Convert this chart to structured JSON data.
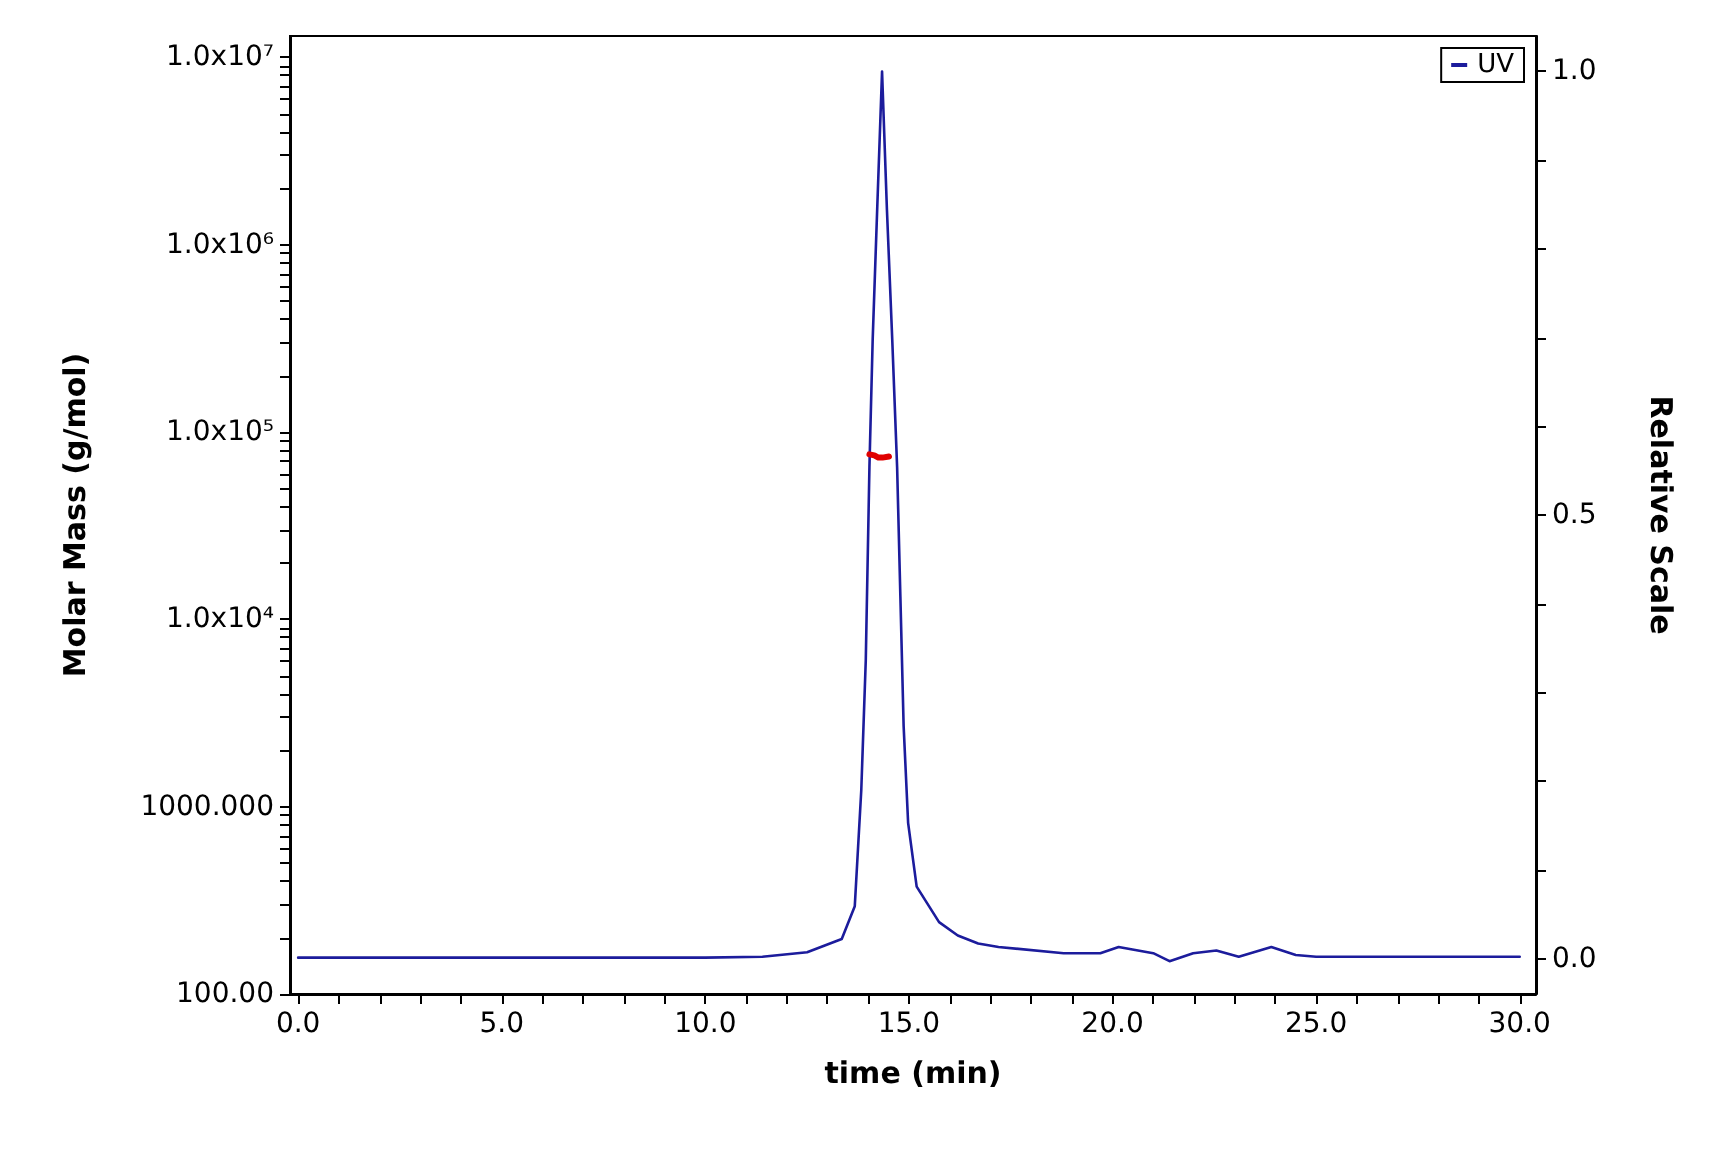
{
  "chart_data": {
    "type": "line",
    "xlabel": "time (min)",
    "ylabel": "Molar Mass (g/mol)",
    "y2label": "Relative Scale",
    "xlim": [
      -0.2,
      30.4
    ],
    "xticks": [
      {
        "value": 0,
        "label": "0.0"
      },
      {
        "value": 1,
        "label": null
      },
      {
        "value": 2,
        "label": null
      },
      {
        "value": 3,
        "label": null
      },
      {
        "value": 4,
        "label": null
      },
      {
        "value": 5,
        "label": "5.0"
      },
      {
        "value": 6,
        "label": null
      },
      {
        "value": 7,
        "label": null
      },
      {
        "value": 8,
        "label": null
      },
      {
        "value": 9,
        "label": null
      },
      {
        "value": 10,
        "label": "10.0"
      },
      {
        "value": 11,
        "label": null
      },
      {
        "value": 12,
        "label": null
      },
      {
        "value": 13,
        "label": null
      },
      {
        "value": 14,
        "label": null
      },
      {
        "value": 15,
        "label": "15.0"
      },
      {
        "value": 16,
        "label": null
      },
      {
        "value": 17,
        "label": null
      },
      {
        "value": 18,
        "label": null
      },
      {
        "value": 19,
        "label": null
      },
      {
        "value": 20,
        "label": "20.0"
      },
      {
        "value": 21,
        "label": null
      },
      {
        "value": 22,
        "label": null
      },
      {
        "value": 23,
        "label": null
      },
      {
        "value": 24,
        "label": null
      },
      {
        "value": 25,
        "label": "25.0"
      },
      {
        "value": 26,
        "label": null
      },
      {
        "value": 27,
        "label": null
      },
      {
        "value": 28,
        "label": null
      },
      {
        "value": 29,
        "label": null
      },
      {
        "value": 30,
        "label": "30.0"
      }
    ],
    "log": "y",
    "ylim": [
      100,
      13000000
    ],
    "yticks": [
      {
        "value": 100,
        "label": "100.00"
      },
      {
        "value": 200,
        "label": null
      },
      {
        "value": 300,
        "label": null
      },
      {
        "value": 400,
        "label": null
      },
      {
        "value": 500,
        "label": null
      },
      {
        "value": 600,
        "label": null
      },
      {
        "value": 700,
        "label": null
      },
      {
        "value": 800,
        "label": null
      },
      {
        "value": 900,
        "label": null
      },
      {
        "value": 1000,
        "label": "1000.000"
      },
      {
        "value": 2000,
        "label": null
      },
      {
        "value": 3000,
        "label": null
      },
      {
        "value": 4000,
        "label": null
      },
      {
        "value": 5000,
        "label": null
      },
      {
        "value": 6000,
        "label": null
      },
      {
        "value": 7000,
        "label": null
      },
      {
        "value": 8000,
        "label": null
      },
      {
        "value": 9000,
        "label": null
      },
      {
        "value": 10000,
        "label": "1.0x10⁴"
      },
      {
        "value": 20000,
        "label": null
      },
      {
        "value": 30000,
        "label": null
      },
      {
        "value": 40000,
        "label": null
      },
      {
        "value": 50000,
        "label": null
      },
      {
        "value": 60000,
        "label": null
      },
      {
        "value": 70000,
        "label": null
      },
      {
        "value": 80000,
        "label": null
      },
      {
        "value": 90000,
        "label": null
      },
      {
        "value": 100000,
        "label": "1.0x10⁵"
      },
      {
        "value": 200000,
        "label": null
      },
      {
        "value": 300000,
        "label": null
      },
      {
        "value": 400000,
        "label": null
      },
      {
        "value": 500000,
        "label": null
      },
      {
        "value": 600000,
        "label": null
      },
      {
        "value": 700000,
        "label": null
      },
      {
        "value": 800000,
        "label": null
      },
      {
        "value": 900000,
        "label": null
      },
      {
        "value": 1000000,
        "label": "1.0x10⁶"
      },
      {
        "value": 2000000,
        "label": null
      },
      {
        "value": 3000000,
        "label": null
      },
      {
        "value": 4000000,
        "label": null
      },
      {
        "value": 5000000,
        "label": null
      },
      {
        "value": 6000000,
        "label": null
      },
      {
        "value": 7000000,
        "label": null
      },
      {
        "value": 8000000,
        "label": null
      },
      {
        "value": 9000000,
        "label": null
      },
      {
        "value": 10000000,
        "label": "1.0x10⁷"
      }
    ],
    "y2lim": [
      -0.04,
      1.04
    ],
    "y2ticks": [
      {
        "value": 0,
        "label": "0.0"
      },
      {
        "value": 0.1,
        "label": null
      },
      {
        "value": 0.2,
        "label": null
      },
      {
        "value": 0.3,
        "label": null
      },
      {
        "value": 0.4,
        "label": null
      },
      {
        "value": 0.6,
        "label": null
      },
      {
        "value": 0.7,
        "label": null
      },
      {
        "value": 0.8,
        "label": null
      },
      {
        "value": 0.9,
        "label": null
      },
      {
        "value": 0.5,
        "label": "0.5"
      },
      {
        "value": 1,
        "label": "1.0"
      }
    ],
    "grid": false,
    "legend": "top right",
    "marker": "none",
    "line_style": "solid",
    "series": [
      {
        "name": "UV",
        "color": "#1c1c9c",
        "axis": "y2",
        "x": [
          0,
          5,
          10,
          11.4,
          12.5,
          13.35,
          13.67,
          13.83,
          13.94,
          14.03,
          14.11,
          14.22,
          14.34,
          14.46,
          14.59,
          14.71,
          14.79,
          14.87,
          14.98,
          15.19,
          15.74,
          16.2,
          16.7,
          17.2,
          18.8,
          19.7,
          20.15,
          21.0,
          21.4,
          21.98,
          22.55,
          23.1,
          23.9,
          24.5,
          25.0,
          30.0
        ],
        "values": [
          0.001,
          0.001,
          0.001,
          0.002,
          0.007,
          0.022,
          0.059,
          0.19,
          0.336,
          0.554,
          0.698,
          0.844,
          1.0,
          0.844,
          0.698,
          0.554,
          0.408,
          0.262,
          0.153,
          0.081,
          0.041,
          0.026,
          0.017,
          0.013,
          0.006,
          0.006,
          0.013,
          0.006,
          -0.003,
          0.006,
          0.009,
          0.002,
          0.013,
          0.004,
          0.002,
          0.002
        ]
      },
      {
        "color": "#e00000",
        "axis": "y",
        "x": [
          14.03,
          14.15,
          14.25,
          14.35,
          14.51
        ],
        "values": [
          76000,
          75000,
          73000,
          73000,
          74000
        ]
      }
    ]
  }
}
